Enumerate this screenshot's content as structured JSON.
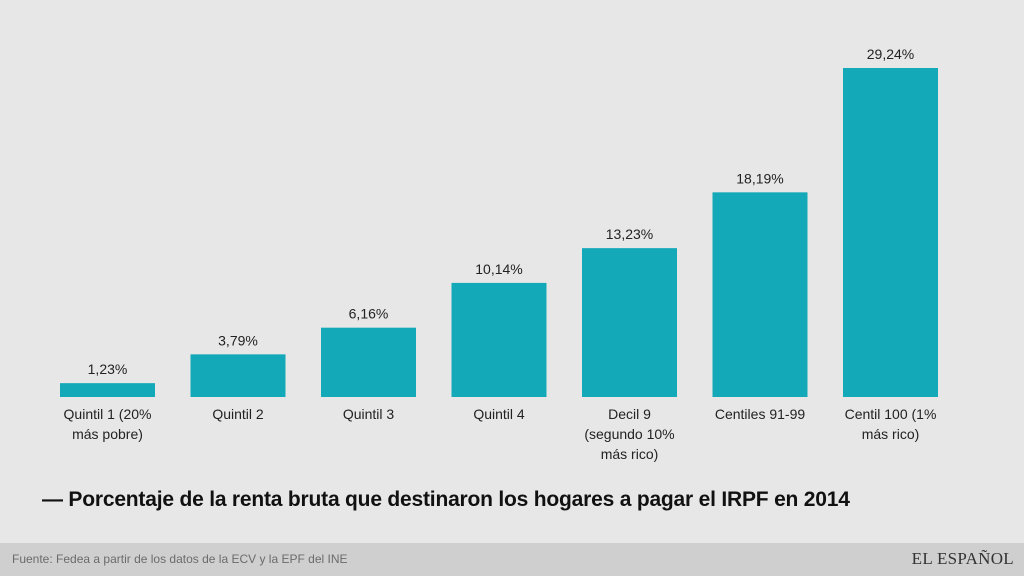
{
  "chart_data": {
    "type": "bar",
    "categories": [
      [
        "Quintil 1 (20%",
        "más pobre)"
      ],
      [
        "Quintil 2"
      ],
      [
        "Quintil 3"
      ],
      [
        "Quintil 4"
      ],
      [
        "Decil 9",
        "(segundo 10%",
        "más rico)"
      ],
      [
        "Centiles 91-99"
      ],
      [
        "Centil 100 (1%",
        "más rico)"
      ]
    ],
    "values": [
      1.23,
      3.79,
      6.16,
      10.14,
      13.23,
      18.19,
      29.24
    ],
    "value_labels": [
      "1,23%",
      "3,79%",
      "6,16%",
      "10,14%",
      "13,23%",
      "18,19%",
      "29,24%"
    ],
    "ylim": [
      0,
      29.24
    ],
    "grid": false,
    "legend": "none",
    "bar_color": "#14a9b8"
  },
  "title": "— Porcentaje de la renta bruta que destinaron los hogares a pagar el IRPF en 2014",
  "footer": {
    "source": "Fuente: Fedea a partir de los datos de la ECV y la EPF del INE",
    "brand": "EL ESPAÑOL"
  }
}
